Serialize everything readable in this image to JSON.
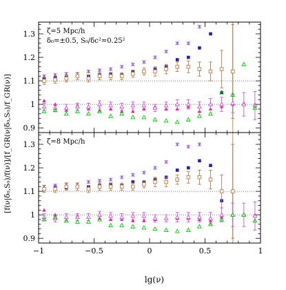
{
  "figure": {
    "xlabel": "lg(ν)",
    "ylabel": "[f(ν|δ₀,S₀)/f(ν)]/[f_GR(ν|δ₀,S₀)/f_GR(ν)]"
  },
  "colors": {
    "frame": "#000000",
    "dotted": "#444444",
    "vertical_line": "#d9a077",
    "series_colors": [
      "#8a5fd0",
      "#2a1fa0",
      "#b87a48",
      "#e0257a",
      "#d050d8",
      "#00c800"
    ]
  },
  "chart_data": [
    {
      "type": "scatter",
      "panel": "top",
      "annotations": [
        "ζ=5 Mpc/h",
        "δ₀=±0.5, S₀/δc²=0.25²"
      ],
      "xlabel": "",
      "ylabel": "",
      "xlim": [
        -1,
        1
      ],
      "ylim": [
        0.88,
        1.35
      ],
      "xticks": [
        -1,
        -0.5,
        0,
        0.5,
        1
      ],
      "xticklabels": [
        "",
        "",
        "",
        "",
        ""
      ],
      "yticks": [
        0.9,
        1,
        1.1,
        1.2,
        1.3
      ],
      "yticklabels": [
        "0.9",
        "1",
        "1.1",
        "1.2",
        "1.3"
      ],
      "reference_lines": [
        1.1,
        1.0
      ],
      "vertical_line_x": 0.75,
      "series": [
        {
          "marker": "cross",
          "x": [
            -0.95,
            -0.85,
            -0.75,
            -0.65,
            -0.55,
            -0.45,
            -0.35,
            -0.25,
            -0.15,
            -0.05,
            0.05,
            0.15,
            0.25,
            0.35,
            0.45
          ],
          "y": [
            1.12,
            1.125,
            1.13,
            1.13,
            1.14,
            1.145,
            1.15,
            1.16,
            1.17,
            1.18,
            1.2,
            1.225,
            1.26,
            1.26,
            1.33
          ]
        },
        {
          "marker": "filled-square",
          "x": [
            -0.95,
            -0.85,
            -0.75,
            -0.65,
            -0.55,
            -0.45,
            -0.35,
            -0.25,
            -0.15,
            -0.05,
            0.05,
            0.15,
            0.25,
            0.35,
            0.45,
            0.55,
            0.65
          ],
          "y": [
            1.11,
            1.115,
            1.115,
            1.12,
            1.12,
            1.125,
            1.13,
            1.125,
            1.14,
            1.14,
            1.15,
            1.16,
            1.19,
            1.2,
            1.24,
            1.3,
            1.05
          ]
        },
        {
          "marker": "open-square-errorbar",
          "x": [
            -0.95,
            -0.85,
            -0.75,
            -0.65,
            -0.55,
            -0.45,
            -0.35,
            -0.25,
            -0.15,
            -0.05,
            0.05,
            0.15,
            0.25,
            0.35,
            0.45,
            0.55,
            0.65,
            0.75
          ],
          "y": [
            1.1,
            1.105,
            1.11,
            1.12,
            1.11,
            1.12,
            1.12,
            1.12,
            1.13,
            1.14,
            1.14,
            1.15,
            1.16,
            1.16,
            1.15,
            1.14,
            1.15,
            1.14
          ],
          "err": [
            0.015,
            0.015,
            0.015,
            0.015,
            0.015,
            0.015,
            0.015,
            0.015,
            0.015,
            0.015,
            0.02,
            0.02,
            0.02,
            0.025,
            0.03,
            0.04,
            0.08,
            0.2
          ]
        },
        {
          "marker": "filled-triangle",
          "x": [
            -0.95,
            -0.85,
            -0.75,
            -0.65,
            -0.55,
            -0.45,
            -0.35,
            -0.25,
            -0.15,
            -0.05,
            0.05,
            0.15,
            0.25,
            0.35,
            0.45,
            0.55,
            0.65,
            0.75,
            0.85,
            0.95
          ],
          "y": [
            1.015,
            1.0,
            0.975,
            0.995,
            0.98,
            0.975,
            0.98,
            0.97,
            0.97,
            0.98,
            0.99,
            0.98,
            0.98,
            0.99,
            0.97,
            0.98,
            0.99,
            1.0,
            1.005,
            1.0
          ]
        },
        {
          "marker": "open-triangle-errorbar",
          "x": [
            -0.95,
            -0.85,
            -0.75,
            -0.65,
            -0.55,
            -0.45,
            -0.35,
            -0.25,
            -0.15,
            -0.05,
            0.05,
            0.15,
            0.25,
            0.35,
            0.45,
            0.55,
            0.65,
            0.75,
            0.85,
            0.95
          ],
          "y": [
            0.99,
            0.985,
            0.985,
            0.99,
            0.99,
            1.0,
            0.995,
            0.99,
            0.995,
            0.995,
            0.985,
            0.995,
            1.0,
            1.0,
            0.99,
            1.0,
            1.0,
            1.005,
            1.0,
            0.995
          ],
          "err": [
            0.015,
            0.015,
            0.015,
            0.015,
            0.015,
            0.015,
            0.015,
            0.015,
            0.015,
            0.015,
            0.015,
            0.015,
            0.02,
            0.02,
            0.02,
            0.025,
            0.03,
            0.04,
            0.05,
            0.06
          ]
        },
        {
          "marker": "open-triangle",
          "x": [
            -0.95,
            -0.85,
            -0.75,
            -0.65,
            -0.55,
            -0.45,
            -0.35,
            -0.25,
            -0.15,
            -0.05,
            0.05,
            0.15,
            0.25,
            0.35,
            0.45,
            0.55,
            0.65,
            0.75,
            0.85,
            0.95
          ],
          "y": [
            0.97,
            0.975,
            0.96,
            0.97,
            0.96,
            0.97,
            0.95,
            0.96,
            0.945,
            0.945,
            0.935,
            0.93,
            0.925,
            0.935,
            0.95,
            0.96,
            1.05,
            1.04,
            1.17,
            0.985
          ]
        }
      ]
    },
    {
      "type": "scatter",
      "panel": "bottom",
      "annotations": [
        "ζ=8 Mpc/h"
      ],
      "xlabel": "lg(ν)",
      "ylabel": "",
      "xlim": [
        -1,
        1
      ],
      "ylim": [
        0.88,
        1.35
      ],
      "xticks": [
        -1,
        -0.5,
        0,
        0.5,
        1
      ],
      "xticklabels": [
        "−1",
        "−0.5",
        "0",
        "0.5",
        "1"
      ],
      "yticks": [
        0.9,
        1,
        1.1,
        1.2,
        1.3
      ],
      "yticklabels": [
        "0.9",
        "1",
        "1.1",
        "1.2",
        "1.3"
      ],
      "reference_lines": [
        1.1,
        1.0
      ],
      "vertical_line_x": 0.75,
      "series": [
        {
          "marker": "cross",
          "x": [
            -0.95,
            -0.85,
            -0.75,
            -0.65,
            -0.55,
            -0.45,
            -0.35,
            -0.25,
            -0.15,
            -0.05,
            0.05,
            0.15,
            0.25,
            0.35,
            0.45
          ],
          "y": [
            1.12,
            1.125,
            1.13,
            1.13,
            1.14,
            1.145,
            1.15,
            1.16,
            1.17,
            1.18,
            1.2,
            1.225,
            1.3,
            1.29,
            1.3
          ]
        },
        {
          "marker": "filled-square",
          "x": [
            -0.95,
            -0.85,
            -0.75,
            -0.65,
            -0.55,
            -0.45,
            -0.35,
            -0.25,
            -0.15,
            -0.05,
            0.05,
            0.15,
            0.25,
            0.35,
            0.45,
            0.55,
            0.65
          ],
          "y": [
            1.11,
            1.115,
            1.115,
            1.12,
            1.12,
            1.125,
            1.13,
            1.125,
            1.14,
            1.14,
            1.15,
            1.16,
            1.19,
            1.2,
            1.23,
            1.21,
            1.06
          ]
        },
        {
          "marker": "open-square-errorbar",
          "x": [
            -0.95,
            -0.85,
            -0.75,
            -0.65,
            -0.55,
            -0.45,
            -0.35,
            -0.25,
            -0.15,
            -0.05,
            0.05,
            0.15,
            0.25,
            0.35,
            0.45,
            0.55,
            0.65,
            0.75
          ],
          "y": [
            1.11,
            1.11,
            1.12,
            1.12,
            1.11,
            1.12,
            1.12,
            1.12,
            1.12,
            1.13,
            1.14,
            1.14,
            1.15,
            1.16,
            1.16,
            1.15,
            1.1,
            1.1
          ],
          "err": [
            0.015,
            0.015,
            0.015,
            0.015,
            0.015,
            0.015,
            0.015,
            0.015,
            0.015,
            0.015,
            0.02,
            0.02,
            0.02,
            0.025,
            0.03,
            0.04,
            0.07,
            0.2
          ]
        },
        {
          "marker": "filled-triangle",
          "x": [
            -0.95,
            -0.85,
            -0.75,
            -0.65,
            -0.55,
            -0.45,
            -0.35,
            -0.25,
            -0.15,
            -0.05,
            0.05,
            0.15,
            0.25,
            0.35,
            0.45,
            0.55,
            0.65,
            0.75,
            0.85,
            0.95
          ],
          "y": [
            1.02,
            1.0,
            0.99,
            0.995,
            0.99,
            0.985,
            0.98,
            0.98,
            0.975,
            0.975,
            0.98,
            0.985,
            0.985,
            0.985,
            0.98,
            0.975,
            0.99,
            1.0,
            1.0,
            1.0
          ]
        },
        {
          "marker": "open-triangle-errorbar",
          "x": [
            -0.95,
            -0.85,
            -0.75,
            -0.65,
            -0.55,
            -0.45,
            -0.35,
            -0.25,
            -0.15,
            -0.05,
            0.05,
            0.15,
            0.25,
            0.35,
            0.45,
            0.55,
            0.65,
            0.75,
            0.85,
            0.95
          ],
          "y": [
            0.99,
            0.985,
            0.99,
            0.99,
            0.99,
            1.0,
            0.995,
            0.99,
            0.995,
            0.995,
            0.985,
            0.985,
            0.99,
            0.99,
            0.99,
            0.985,
            1.0,
            1.0,
            1.0,
            0.995
          ],
          "err": [
            0.015,
            0.015,
            0.015,
            0.015,
            0.015,
            0.015,
            0.015,
            0.015,
            0.015,
            0.015,
            0.015,
            0.015,
            0.02,
            0.02,
            0.02,
            0.025,
            0.03,
            0.05,
            0.05,
            0.06
          ]
        },
        {
          "marker": "open-triangle",
          "x": [
            -0.95,
            -0.85,
            -0.75,
            -0.65,
            -0.55,
            -0.45,
            -0.35,
            -0.25,
            -0.15,
            -0.05,
            0.05,
            0.15,
            0.25,
            0.35,
            0.45,
            0.55,
            0.65,
            0.75,
            0.85,
            0.95
          ],
          "y": [
            0.98,
            0.99,
            0.975,
            0.97,
            0.97,
            0.98,
            0.955,
            0.955,
            0.95,
            0.945,
            0.94,
            0.935,
            0.93,
            0.935,
            0.95,
            0.96,
            0.98,
            1.0,
            1.0,
            0.975
          ]
        }
      ]
    }
  ]
}
